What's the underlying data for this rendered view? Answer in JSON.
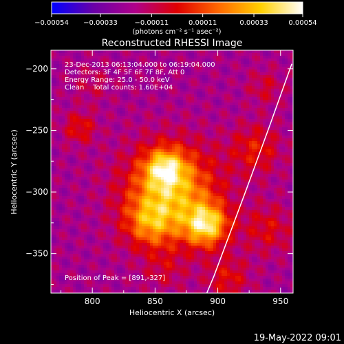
{
  "chart_data": {
    "type": "heatmap",
    "title": "Reconstructed RHESSI Image",
    "xlabel": "Heliocentric X (arcsec)",
    "ylabel": "Heliocentric Y (arcsec)",
    "xlim": [
      767,
      960
    ],
    "ylim": [
      -382,
      -185
    ],
    "x_ticks": [
      800,
      850,
      900,
      950
    ],
    "y_ticks": [
      -200,
      -250,
      -300,
      -350
    ],
    "x_tick_labels": [
      "800",
      "850",
      "900",
      "950"
    ],
    "y_tick_labels": [
      "−200",
      "−250",
      "−300",
      "−350"
    ],
    "colorbar": {
      "range": [
        -0.00054,
        0.00054
      ],
      "tick_values": [
        -0.00054,
        -0.00033,
        -0.00011,
        0.00011,
        0.00033,
        0.00054
      ],
      "tick_labels": [
        "−0.00054",
        "−0.00033",
        "−0.00011",
        "0.00011",
        "0.00033",
        "0.00054"
      ],
      "unit_label": "(photons cm⁻² s⁻¹ asec⁻²)",
      "colors": [
        "#0000ff",
        "#6a00a8",
        "#b0008a",
        "#e00000",
        "#ff6a00",
        "#ffd000",
        "#ffffff"
      ]
    },
    "annotations": {
      "time": "23-Dec-2013 06:13:04.000 to 06:19:04.000",
      "detectors": "Detectors: 3F 4F 5F 6F 7F 8F, Att 0",
      "energy": "Energy Range: 25.0 - 50.0 keV",
      "clean": "Clean    Total counts: 1.60E+04",
      "peak": "Position of Peak = [891,-327]"
    },
    "peak": [
      891,
      -327
    ],
    "sources": [
      {
        "x": 863,
        "y": -300,
        "amplitude": 0.0005,
        "sigma": 26
      },
      {
        "x": 891,
        "y": -327,
        "amplitude": 0.00054,
        "sigma": 12
      },
      {
        "x": 858,
        "y": -281,
        "amplitude": 0.0004,
        "sigma": 11
      },
      {
        "x": 846,
        "y": -325,
        "amplitude": 0.0003,
        "sigma": 14
      },
      {
        "x": 790,
        "y": -248,
        "amplitude": 0.00022,
        "sigma": 9
      },
      {
        "x": 800,
        "y": -213,
        "amplitude": 0.0001,
        "sigma": 10
      },
      {
        "x": 930,
        "y": -265,
        "amplitude": 0.00022,
        "sigma": 14
      },
      {
        "x": 940,
        "y": -330,
        "amplitude": 0.00018,
        "sigma": 14
      },
      {
        "x": 908,
        "y": -370,
        "amplitude": 0.0002,
        "sigma": 12
      },
      {
        "x": 858,
        "y": -362,
        "amplitude": 0.00012,
        "sigma": 12
      },
      {
        "x": 938,
        "y": -215,
        "amplitude": 0.00014,
        "sigma": 10
      }
    ],
    "background": -0.0002,
    "limb_curve": [
      [
        959,
        -196
      ],
      [
        940,
        -250
      ],
      [
        922,
        -300
      ],
      [
        897,
        -368
      ],
      [
        890,
        -385
      ]
    ]
  },
  "footer": {
    "timestamp": "19-May-2022 09:01"
  }
}
